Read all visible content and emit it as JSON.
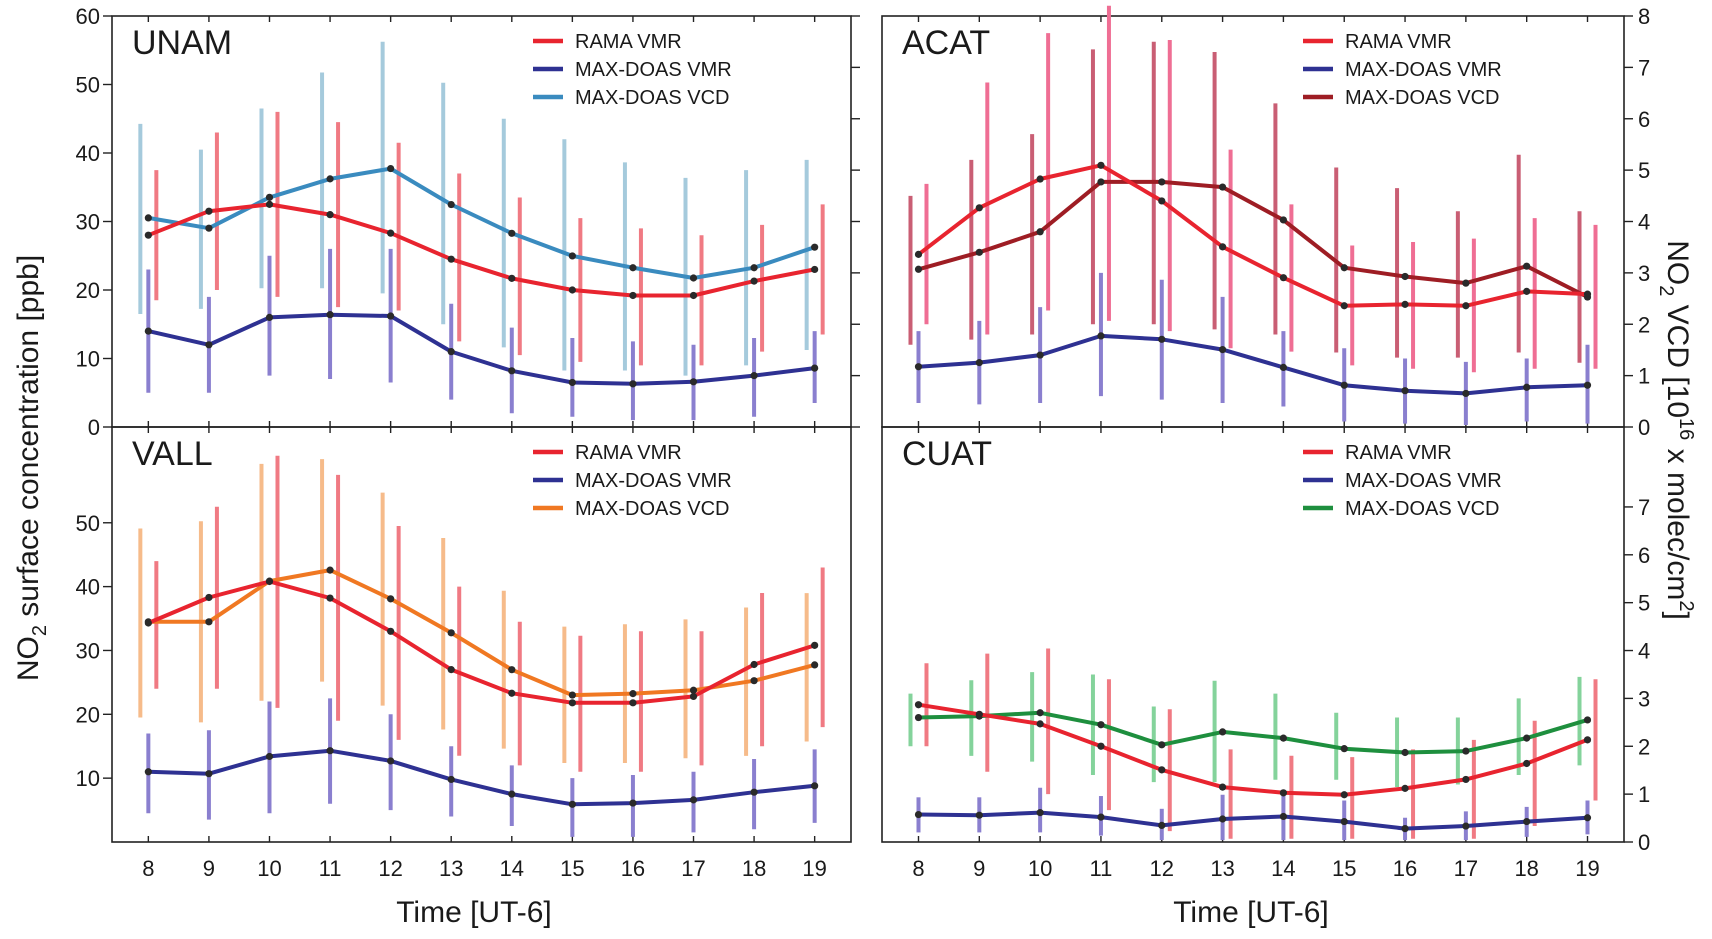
{
  "figure": {
    "x_axis_title": "Time [UT-6]",
    "left_axis_title": {
      "pre": "NO",
      "sub": "2",
      "post": " surface concentration [ppb]"
    },
    "right_axis_title": {
      "pre": "NO",
      "sub": "2",
      "mid": " VCD [10",
      "sup": "16",
      "post": " x molec/cm",
      "sup2": "2",
      "end": "]"
    }
  },
  "chart_data": [
    {
      "type": "line",
      "title": "UNAM",
      "xlabel": "Time [UT-6]",
      "ylabel": "NO2 surface concentration [ppb]",
      "x": [
        8,
        9,
        10,
        11,
        12,
        13,
        14,
        15,
        16,
        17,
        18,
        19
      ],
      "xlim": [
        7.4,
        19.6
      ],
      "ylim": [
        0,
        60
      ],
      "yticks": [
        0,
        10,
        20,
        30,
        40,
        50,
        60
      ],
      "y2lim": [
        0,
        8
      ],
      "y2ticks": [
        0,
        1,
        2,
        3,
        4,
        5,
        6,
        7,
        8
      ],
      "legend": [
        "RAMA VMR",
        "MAX-DOAS VMR",
        "MAX-DOAS VCD"
      ],
      "series": [
        {
          "name": "RAMA VMR",
          "color": "#e8242f",
          "bar_color": "#f07a83",
          "axis": "left",
          "values": [
            28,
            31.5,
            32.5,
            31,
            28.3,
            24.5,
            21.7,
            20,
            19.2,
            19.2,
            21.3,
            23
          ],
          "err_low": [
            18.5,
            20,
            19,
            17.5,
            17,
            12.5,
            10.5,
            9.5,
            9,
            9,
            11,
            13.5
          ],
          "err_high": [
            37.5,
            43,
            46,
            44.5,
            41.5,
            37,
            33.5,
            30.5,
            29,
            28,
            29.5,
            32.5
          ]
        },
        {
          "name": "MAX-DOAS VMR",
          "color": "#2e3192",
          "bar_color": "#8a7fcf",
          "axis": "left",
          "values": [
            14,
            12,
            16,
            16.4,
            16.2,
            11,
            8.2,
            6.5,
            6.3,
            6.6,
            7.5,
            8.6
          ],
          "err_low": [
            5,
            5,
            7.5,
            7,
            6.5,
            4,
            2,
            1.5,
            1,
            1,
            1.5,
            3.5
          ],
          "err_high": [
            23,
            19,
            25,
            26,
            26,
            18,
            14.5,
            13,
            12.5,
            12,
            13,
            14
          ]
        },
        {
          "name": "MAX-DOAS VCD",
          "color": "#3a8bbf",
          "bar_color": "#a5cadc",
          "axis": "right",
          "values": [
            4.07,
            3.87,
            4.47,
            4.83,
            5.03,
            4.33,
            3.77,
            3.33,
            3.1,
            2.9,
            3.1,
            3.5
          ],
          "err_low": [
            2.2,
            2.3,
            2.7,
            2.7,
            2.6,
            2.0,
            1.55,
            1.1,
            1.1,
            1.0,
            1.2,
            1.5
          ],
          "err_high": [
            5.9,
            5.4,
            6.2,
            6.9,
            7.5,
            6.7,
            6.0,
            5.6,
            5.15,
            4.85,
            5.0,
            5.2
          ]
        }
      ]
    },
    {
      "type": "line",
      "title": "ACAT",
      "xlabel": "Time [UT-6]",
      "ylabel": "NO2 VCD [10^16 x molec/cm2]",
      "x": [
        8,
        9,
        10,
        11,
        12,
        13,
        14,
        15,
        16,
        17,
        18,
        19
      ],
      "xlim": [
        7.4,
        19.6
      ],
      "ylim": [
        0,
        60
      ],
      "y2lim": [
        0,
        8
      ],
      "y2ticks": [
        0,
        1,
        2,
        3,
        4,
        5,
        6,
        7,
        8
      ],
      "legend": [
        "RAMA VMR",
        "MAX-DOAS VMR",
        "MAX-DOAS VCD"
      ],
      "series": [
        {
          "name": "RAMA VMR",
          "color": "#e8242f",
          "bar_color": "#ef6e94",
          "axis": "left",
          "values": [
            25.2,
            32,
            36.2,
            38.2,
            33,
            26.3,
            21.8,
            17.7,
            17.9,
            17.7,
            19.8,
            19.4
          ],
          "err_low": [
            15,
            13.5,
            17,
            15.5,
            14,
            11.5,
            11,
            9,
            8.5,
            8,
            8.5,
            8.5
          ],
          "err_high": [
            35.5,
            50.3,
            57.5,
            61.5,
            56.5,
            40.5,
            32.5,
            26.5,
            27,
            27.5,
            30.5,
            29.5
          ]
        },
        {
          "name": "MAX-DOAS VMR",
          "color": "#2e3192",
          "bar_color": "#8a7fcf",
          "axis": "left",
          "values": [
            8.8,
            9.4,
            10.5,
            13.3,
            12.8,
            11.3,
            8.7,
            6.1,
            5.3,
            4.9,
            5.8,
            6.1
          ],
          "err_low": [
            3.5,
            3.3,
            3.5,
            4.5,
            4,
            3.5,
            3,
            0.8,
            0.5,
            0.3,
            0.8,
            0.5
          ],
          "err_high": [
            14,
            15.5,
            17.5,
            22.5,
            21.5,
            19,
            14,
            11.5,
            10,
            9.5,
            10,
            12
          ]
        },
        {
          "name": "MAX-DOAS VCD",
          "color": "#9e1d24",
          "bar_color": "#c95e74",
          "axis": "right",
          "values": [
            3.07,
            3.4,
            3.8,
            4.77,
            4.77,
            4.67,
            4.03,
            3.1,
            2.93,
            2.8,
            3.13,
            2.53
          ],
          "err_low": [
            1.6,
            1.7,
            1.8,
            2.0,
            2.0,
            1.9,
            1.8,
            1.45,
            1.35,
            1.35,
            1.45,
            1.25
          ],
          "err_high": [
            4.5,
            5.2,
            5.7,
            7.35,
            7.5,
            7.3,
            6.3,
            5.05,
            4.65,
            4.2,
            5.3,
            4.2
          ]
        }
      ]
    },
    {
      "type": "line",
      "title": "VALL",
      "xlabel": "Time [UT-6]",
      "ylabel": "NO2 surface concentration [ppb]",
      "x": [
        8,
        9,
        10,
        11,
        12,
        13,
        14,
        15,
        16,
        17,
        18,
        19
      ],
      "xlim": [
        7.4,
        19.6
      ],
      "ylim": [
        0,
        65
      ],
      "yticks": [
        10,
        20,
        30,
        40,
        50
      ],
      "y2lim": [
        0,
        8.67
      ],
      "legend": [
        "RAMA VMR",
        "MAX-DOAS VMR",
        "MAX-DOAS VCD"
      ],
      "series": [
        {
          "name": "RAMA VMR",
          "color": "#e8242f",
          "bar_color": "#f07a83",
          "axis": "left",
          "values": [
            34.3,
            38.3,
            40.8,
            38.2,
            33,
            27,
            23.3,
            21.8,
            21.8,
            22.8,
            27.8,
            30.8
          ],
          "err_low": [
            24,
            24,
            21,
            19,
            16,
            13.5,
            12,
            11,
            11,
            12,
            15,
            18
          ],
          "err_high": [
            44,
            52.5,
            60.5,
            57.5,
            49.5,
            40,
            34.5,
            32.3,
            33,
            33,
            39,
            43
          ]
        },
        {
          "name": "MAX-DOAS VMR",
          "color": "#2e3192",
          "bar_color": "#8a7fcf",
          "axis": "left",
          "values": [
            11,
            10.7,
            13.4,
            14.3,
            12.7,
            9.8,
            7.5,
            5.9,
            6.1,
            6.6,
            7.8,
            8.8
          ],
          "err_low": [
            4.5,
            3.5,
            4.5,
            6,
            5,
            4,
            2.5,
            0.8,
            0.8,
            1.5,
            2,
            3
          ],
          "err_high": [
            17,
            17.5,
            22,
            22.5,
            20,
            15,
            12,
            10,
            10.5,
            11,
            13,
            14.5
          ]
        },
        {
          "name": "MAX-DOAS VCD",
          "color": "#f07822",
          "bar_color": "#f6bb8a",
          "axis": "right",
          "values": [
            4.6,
            4.6,
            5.45,
            5.68,
            5.08,
            4.37,
            3.6,
            3.07,
            3.1,
            3.17,
            3.37,
            3.7
          ],
          "err_low": [
            2.6,
            2.5,
            2.95,
            3.35,
            2.85,
            2.35,
            1.95,
            1.65,
            1.65,
            1.75,
            1.8,
            2.1
          ],
          "err_high": [
            6.55,
            6.7,
            7.9,
            8.0,
            7.3,
            6.35,
            5.25,
            4.5,
            4.55,
            4.65,
            4.9,
            5.2
          ]
        }
      ]
    },
    {
      "type": "line",
      "title": "CUAT",
      "xlabel": "Time [UT-6]",
      "ylabel": "NO2 VCD [10^16 x molec/cm2]",
      "x": [
        8,
        9,
        10,
        11,
        12,
        13,
        14,
        15,
        16,
        17,
        18,
        19
      ],
      "xlim": [
        7.4,
        19.6
      ],
      "ylim": [
        0,
        65
      ],
      "y2lim": [
        0,
        8.67
      ],
      "y2ticks": [
        0,
        1,
        2,
        3,
        4,
        5,
        6,
        7
      ],
      "legend": [
        "RAMA VMR",
        "MAX-DOAS VMR",
        "MAX-DOAS VCD"
      ],
      "series": [
        {
          "name": "RAMA VMR",
          "color": "#e8242f",
          "bar_color": "#f07a83",
          "axis": "left",
          "values": [
            21.5,
            20,
            18.5,
            15,
            11.3,
            8.6,
            7.7,
            7.4,
            8.4,
            9.8,
            12.3,
            16
          ],
          "err_low": [
            15,
            11,
            7.5,
            5,
            1.7,
            0.5,
            0.5,
            0.5,
            0.5,
            0.5,
            2.5,
            6.5
          ],
          "err_high": [
            28,
            29.5,
            30.3,
            25.5,
            20.8,
            14.5,
            13.5,
            13.3,
            14.5,
            16,
            19,
            25.5
          ]
        },
        {
          "name": "MAX-DOAS VMR",
          "color": "#2e3192",
          "bar_color": "#8a7fcf",
          "axis": "left",
          "values": [
            4.3,
            4.2,
            4.6,
            3.9,
            2.6,
            3.6,
            4,
            3.2,
            2.1,
            2.5,
            3.2,
            3.8
          ],
          "err_low": [
            1.5,
            1.5,
            1.5,
            1,
            0.3,
            0.3,
            0.3,
            0.3,
            0.3,
            0.3,
            0.8,
            1.2
          ],
          "err_high": [
            7,
            7,
            8.5,
            7.2,
            5.2,
            7.4,
            8.2,
            6.5,
            3.8,
            4.8,
            5.5,
            6.5
          ]
        },
        {
          "name": "MAX-DOAS VCD",
          "color": "#1e8f3e",
          "bar_color": "#84d39b",
          "axis": "right",
          "values": [
            2.6,
            2.63,
            2.7,
            2.45,
            2.03,
            2.3,
            2.17,
            1.95,
            1.87,
            1.9,
            2.17,
            2.55
          ],
          "err_low": [
            2.0,
            1.8,
            1.68,
            1.4,
            1.25,
            1.25,
            1.3,
            1.3,
            1.15,
            1.2,
            1.4,
            1.6
          ],
          "err_high": [
            3.1,
            3.38,
            3.55,
            3.5,
            2.83,
            3.37,
            3.1,
            2.7,
            2.6,
            2.6,
            3.0,
            3.45
          ]
        }
      ]
    }
  ]
}
